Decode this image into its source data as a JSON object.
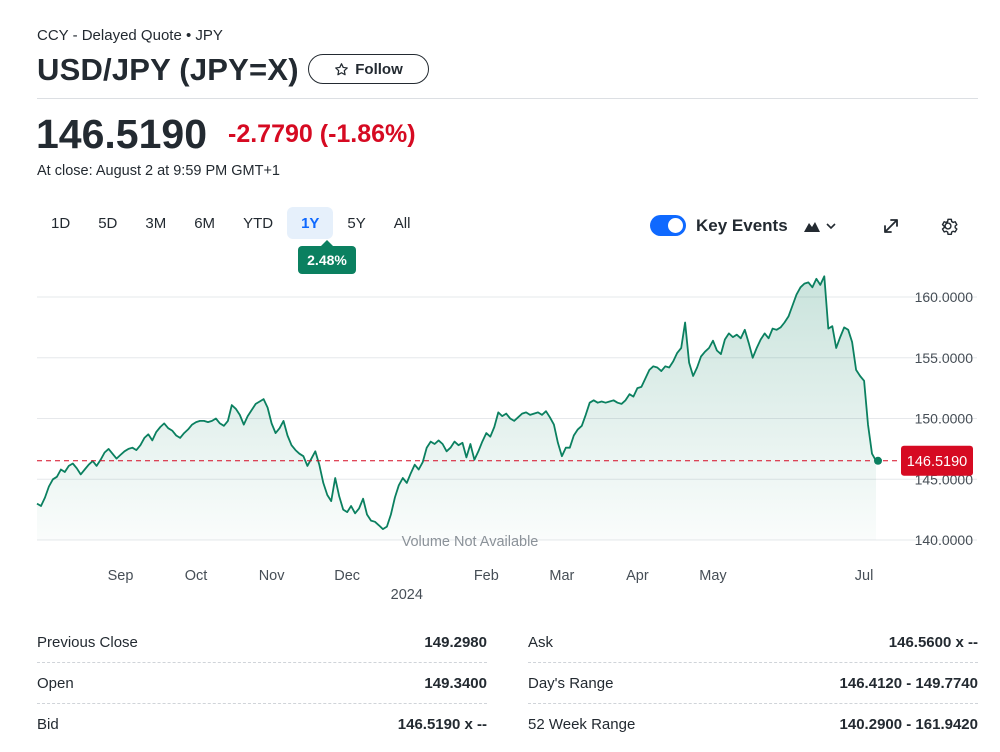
{
  "header": {
    "subtitle": "CCY - Delayed Quote • JPY",
    "title": "USD/JPY (JPY=X)",
    "follow_label": "Follow"
  },
  "quote": {
    "price": "146.5190",
    "change": "-2.7790",
    "change_pct": "(-1.86%)",
    "close_info": "At close: August 2 at 9:59 PM GMT+1"
  },
  "ranges": [
    "1D",
    "5D",
    "3M",
    "6M",
    "YTD",
    "1Y",
    "5Y",
    "All"
  ],
  "active_range": "1Y",
  "performance_badge": "2.48%",
  "key_events": {
    "label": "Key Events",
    "enabled": true
  },
  "colors": {
    "line": "#0b8060",
    "area": "#0b8060",
    "negative": "#d60a22",
    "accent": "#0f69ff"
  },
  "chart_data": {
    "type": "area",
    "x_unit": "trading day index",
    "ylim": [
      140,
      162.5
    ],
    "y_ticks": [
      "160.0000",
      "155.0000",
      "150.0000",
      "145.0000",
      "140.0000"
    ],
    "y_tick_values": [
      160,
      155,
      150,
      145,
      140
    ],
    "x_tick_labels": [
      "Sep",
      "Oct",
      "Nov",
      "Dec",
      "Feb",
      "Mar",
      "Apr",
      "May",
      "Jul"
    ],
    "x_tick_positions": [
      21,
      40,
      59,
      78,
      113,
      132,
      151,
      170,
      208
    ],
    "year_label": "2024",
    "year_position": 93,
    "reference_line": 146.519,
    "last_price_label": "146.5190",
    "volume_note": "Volume Not Available",
    "values": [
      143.0,
      142.8,
      143.5,
      144.4,
      145.0,
      145.2,
      145.8,
      145.6,
      146.1,
      146.3,
      145.9,
      145.4,
      145.8,
      146.2,
      146.5,
      146.1,
      146.6,
      147.2,
      147.5,
      147.1,
      146.7,
      147.0,
      147.3,
      147.5,
      147.6,
      147.4,
      147.8,
      148.4,
      148.7,
      148.2,
      148.9,
      149.3,
      149.6,
      149.2,
      149.0,
      148.6,
      148.4,
      148.8,
      149.1,
      149.5,
      149.7,
      149.8,
      149.8,
      149.7,
      149.8,
      150.0,
      149.6,
      149.4,
      149.8,
      151.1,
      150.8,
      150.3,
      149.5,
      150.2,
      150.7,
      151.2,
      151.4,
      151.6,
      150.9,
      149.6,
      148.8,
      149.2,
      149.8,
      148.6,
      147.8,
      147.4,
      147.1,
      146.9,
      146.1,
      146.7,
      147.3,
      146.2,
      144.7,
      143.7,
      143.2,
      145.1,
      143.6,
      142.5,
      142.3,
      142.8,
      142.2,
      142.6,
      143.4,
      142.1,
      141.6,
      141.5,
      141.2,
      140.9,
      141.1,
      142.1,
      143.5,
      144.5,
      145.1,
      144.7,
      145.5,
      146.2,
      145.8,
      146.4,
      147.6,
      148.1,
      147.9,
      148.2,
      147.9,
      147.3,
      147.6,
      148.1,
      147.8,
      148.0,
      146.8,
      147.9,
      146.6,
      147.3,
      148.1,
      148.8,
      148.5,
      149.3,
      150.5,
      150.2,
      150.4,
      150.0,
      149.8,
      150.1,
      150.4,
      150.5,
      150.3,
      150.4,
      150.5,
      150.3,
      150.6,
      150.1,
      149.5,
      148.0,
      146.9,
      147.6,
      147.6,
      148.6,
      149.1,
      149.4,
      150.3,
      151.3,
      151.5,
      151.3,
      151.4,
      151.3,
      151.4,
      151.5,
      151.3,
      151.2,
      151.5,
      152.0,
      151.8,
      152.5,
      152.6,
      153.3,
      154.0,
      154.3,
      154.2,
      153.9,
      154.3,
      154.2,
      154.7,
      155.4,
      155.8,
      157.9,
      154.6,
      153.5,
      154.2,
      155.1,
      155.5,
      155.8,
      156.4,
      155.6,
      155.3,
      156.5,
      157.0,
      156.7,
      156.9,
      156.6,
      157.3,
      156.2,
      155.0,
      155.8,
      156.5,
      157.0,
      156.6,
      157.4,
      157.3,
      157.5,
      157.9,
      158.4,
      159.3,
      160.2,
      160.8,
      161.1,
      161.2,
      160.8,
      161.5,
      161.0,
      161.7,
      157.4,
      157.6,
      155.8,
      156.7,
      157.5,
      157.3,
      156.3,
      154.0,
      153.5,
      153.1,
      149.5,
      147.1,
      146.519
    ]
  },
  "stats": {
    "left": [
      {
        "label": "Previous Close",
        "value": "149.2980"
      },
      {
        "label": "Open",
        "value": "149.3400"
      },
      {
        "label": "Bid",
        "value": "146.5190 x --"
      }
    ],
    "right": [
      {
        "label": "Ask",
        "value": "146.5600 x --"
      },
      {
        "label": "Day's Range",
        "value": "146.4120 - 149.7740"
      },
      {
        "label": "52 Week Range",
        "value": "140.2900 - 161.9420"
      }
    ]
  }
}
